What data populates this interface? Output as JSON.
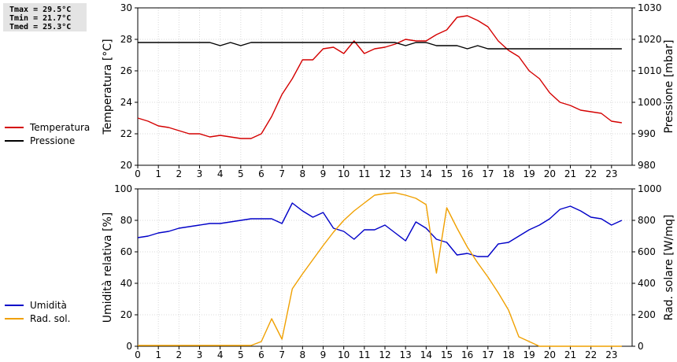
{
  "stats": {
    "tmax": "Tmax = 29.5°C",
    "tmin": "Tmin = 21.7°C",
    "tmed": "Tmed = 25.3°C"
  },
  "legend_top": [
    {
      "label": "Temperatura",
      "color": "#d40000"
    },
    {
      "label": "Pressione",
      "color": "#000000"
    }
  ],
  "legend_bottom": [
    {
      "label": "Umidità",
      "color": "#0000c8"
    },
    {
      "label": "Rad. sol.",
      "color": "#f0a000"
    }
  ],
  "chart_data": [
    {
      "type": "line",
      "x_ticks": [
        "0",
        "1",
        "2",
        "3",
        "4",
        "5",
        "6",
        "7",
        "8",
        "9",
        "10",
        "11",
        "12",
        "13",
        "14",
        "15",
        "16",
        "17",
        "18",
        "19",
        "20",
        "21",
        "22",
        "23"
      ],
      "xlim": [
        0,
        24
      ],
      "grid": true,
      "ylabel": "Temperatura [°C]",
      "ylim": [
        20,
        30
      ],
      "y_ticks": [
        "20",
        "22",
        "24",
        "26",
        "28",
        "30"
      ],
      "y2label": "Pressione [mbar]",
      "y2lim": [
        980,
        1030
      ],
      "y2_ticks": [
        "980",
        "990",
        "1000",
        "1010",
        "1020",
        "1030"
      ],
      "series": [
        {
          "name": "Temperatura",
          "axis": "left",
          "color": "#d40000",
          "x": [
            0,
            0.5,
            1,
            1.5,
            2,
            2.5,
            3,
            3.5,
            4,
            4.5,
            5,
            5.5,
            6,
            6.5,
            7,
            7.5,
            8,
            8.5,
            9,
            9.5,
            10,
            10.5,
            11,
            11.5,
            12,
            12.5,
            13,
            13.5,
            14,
            14.5,
            15,
            15.5,
            16,
            16.5,
            17,
            17.5,
            18,
            18.5,
            19,
            19.5,
            20,
            20.5,
            21,
            21.5,
            22,
            22.5,
            23,
            23.5
          ],
          "values": [
            23.0,
            22.8,
            22.5,
            22.4,
            22.2,
            22.0,
            22.0,
            21.8,
            21.9,
            21.8,
            21.7,
            21.7,
            22.0,
            23.1,
            24.5,
            25.5,
            26.7,
            26.7,
            27.4,
            27.5,
            27.1,
            27.9,
            27.1,
            27.4,
            27.5,
            27.7,
            28.0,
            27.9,
            27.9,
            28.3,
            28.6,
            29.4,
            29.5,
            29.2,
            28.8,
            27.9,
            27.3,
            26.9,
            26.0,
            25.5,
            24.6,
            24.0,
            23.8,
            23.5,
            23.4,
            23.3,
            22.8,
            22.7
          ]
        },
        {
          "name": "Pressione",
          "axis": "right",
          "color": "#000000",
          "x": [
            0,
            1,
            2,
            3,
            3.5,
            4,
            4.5,
            5,
            5.5,
            6,
            7,
            8,
            9,
            10,
            11,
            12,
            12.5,
            13,
            13.5,
            14,
            14.5,
            15,
            15.5,
            16,
            16.5,
            17,
            18,
            19,
            20,
            21,
            22,
            23,
            23.5
          ],
          "values": [
            1019,
            1019,
            1019,
            1019,
            1019,
            1018,
            1019,
            1018,
            1019,
            1019,
            1019,
            1019,
            1019,
            1019,
            1019,
            1019,
            1019,
            1018,
            1019,
            1019,
            1018,
            1018,
            1018,
            1017,
            1018,
            1017,
            1017,
            1017,
            1017,
            1017,
            1017,
            1017,
            1017
          ]
        }
      ]
    },
    {
      "type": "line",
      "x_ticks": [
        "0",
        "1",
        "2",
        "3",
        "4",
        "5",
        "6",
        "7",
        "8",
        "9",
        "10",
        "11",
        "12",
        "13",
        "14",
        "15",
        "16",
        "17",
        "18",
        "19",
        "20",
        "21",
        "22",
        "23"
      ],
      "xlim": [
        0,
        24
      ],
      "grid": true,
      "ylabel": "Umidità relativa [%]",
      "ylim": [
        0,
        100
      ],
      "y_ticks": [
        "0",
        "20",
        "40",
        "60",
        "80",
        "100"
      ],
      "y2label": "Rad. solare [W/mq]",
      "y2lim": [
        0,
        1000
      ],
      "y2_ticks": [
        "0",
        "200",
        "400",
        "600",
        "800",
        "1000"
      ],
      "series": [
        {
          "name": "Umidità",
          "axis": "left",
          "color": "#0000c8",
          "x": [
            0,
            0.5,
            1,
            1.5,
            2,
            2.5,
            3,
            3.5,
            4,
            4.5,
            5,
            5.5,
            6,
            6.5,
            7,
            7.5,
            8,
            8.5,
            9,
            9.5,
            10,
            10.5,
            11,
            11.5,
            12,
            12.5,
            13,
            13.5,
            14,
            14.5,
            15,
            15.5,
            16,
            16.5,
            17,
            17.5,
            18,
            18.5,
            19,
            19.5,
            20,
            20.5,
            21,
            21.5,
            22,
            22.5,
            23,
            23.5
          ],
          "values": [
            69,
            70,
            72,
            73,
            75,
            76,
            77,
            78,
            78,
            79,
            80,
            81,
            81,
            81,
            78,
            91,
            86,
            82,
            85,
            75,
            73,
            68,
            74,
            74,
            77,
            72,
            67,
            79,
            75,
            68,
            66,
            58,
            59,
            57,
            57,
            65,
            66,
            70,
            74,
            77,
            81,
            87,
            89,
            86,
            82,
            81,
            77,
            80
          ]
        },
        {
          "name": "Rad. sol.",
          "axis": "right",
          "color": "#f0a000",
          "x": [
            0,
            1,
            2,
            3,
            4,
            5,
            5.5,
            6,
            6.5,
            7,
            7.5,
            8,
            8.5,
            9,
            9.5,
            10,
            10.5,
            11,
            11.5,
            12,
            12.5,
            13,
            13.5,
            14,
            14.5,
            15,
            15.5,
            16,
            16.5,
            17,
            17.5,
            18,
            18.5,
            19,
            19.5,
            20,
            21,
            22,
            23,
            23.5
          ],
          "values": [
            5,
            5,
            5,
            5,
            5,
            5,
            5,
            30,
            175,
            45,
            365,
            460,
            550,
            640,
            725,
            800,
            860,
            910,
            960,
            970,
            975,
            960,
            940,
            900,
            465,
            880,
            750,
            630,
            530,
            440,
            340,
            230,
            60,
            30,
            0,
            0,
            0,
            0,
            0,
            0
          ]
        }
      ]
    }
  ]
}
